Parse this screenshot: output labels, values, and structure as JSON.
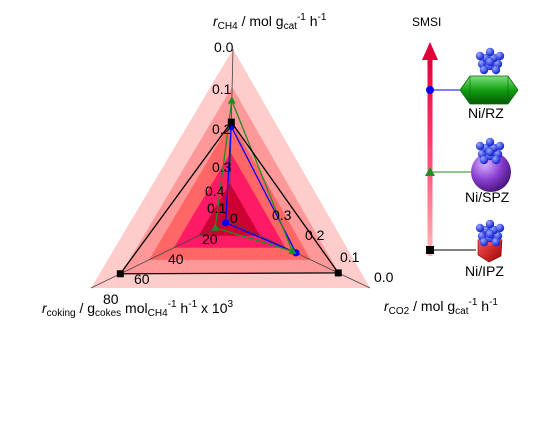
{
  "chart_data": {
    "type": "radar",
    "axes": [
      {
        "key": "ch4",
        "title": {
          "main": "r",
          "sub": "CH4",
          "rest": " / mol g",
          "sub2": "cat",
          "sup": "-1",
          "rest2": " h",
          "sup2": "-1"
        },
        "ticks": [
          "0.0",
          "0.1",
          "0.2",
          "0.3",
          "0.4"
        ],
        "range": [
          0.4,
          0.0
        ]
      },
      {
        "key": "co2",
        "title": {
          "main": "r",
          "sub": "CO2",
          "rest": " / mol g",
          "sub2": "cat",
          "sup": "-1",
          "rest2": " h",
          "sup2": "-1"
        },
        "ticks": [
          "0.0",
          "0.1",
          "0.2",
          "0.3"
        ],
        "range": [
          0.4,
          0.0
        ]
      },
      {
        "key": "coking",
        "title": {
          "main": "r",
          "sub": "coking",
          "rest": " / g",
          "sub2": "cokes",
          "rest1b": " mol",
          "sub3": "CH4",
          "sup": "-1",
          "rest2": " h",
          "sup2": "-1",
          "rest3": " x 10",
          "sup3": "3"
        },
        "ticks": [
          "0",
          "20",
          "40",
          "60",
          "80"
        ],
        "range": [
          0,
          80
        ]
      }
    ],
    "center_label": "0",
    "series": [
      {
        "name": "Ni/RZ",
        "color": "#0000ff",
        "marker": "circle",
        "values": {
          "ch4": 0.18,
          "co2": 0.21,
          "coking": 2
        }
      },
      {
        "name": "Ni/SPZ",
        "color": "#228b22",
        "marker": "triangle",
        "values": {
          "ch4": 0.12,
          "co2": 0.22,
          "coking": 8
        }
      },
      {
        "name": "Ni/IPZ",
        "color": "#000000",
        "marker": "square",
        "values": {
          "ch4": 0.17,
          "co2": 0.09,
          "coking": 63
        }
      }
    ],
    "bands": [
      "#ffcccc",
      "#ff9999",
      "#ff6666",
      "#ff1a66",
      "#cc0033"
    ]
  },
  "smsi": {
    "label": "SMSI",
    "items": [
      {
        "name": "Ni/RZ",
        "marker": "circle",
        "color": "#0000ff",
        "shape": "green-hexagonal-prism"
      },
      {
        "name": "Ni/SPZ",
        "marker": "triangle",
        "color": "#228b22",
        "shape": "purple-sphere"
      },
      {
        "name": "Ni/IPZ",
        "marker": "square",
        "color": "#000000",
        "shape": "red-polyhedron"
      }
    ]
  }
}
